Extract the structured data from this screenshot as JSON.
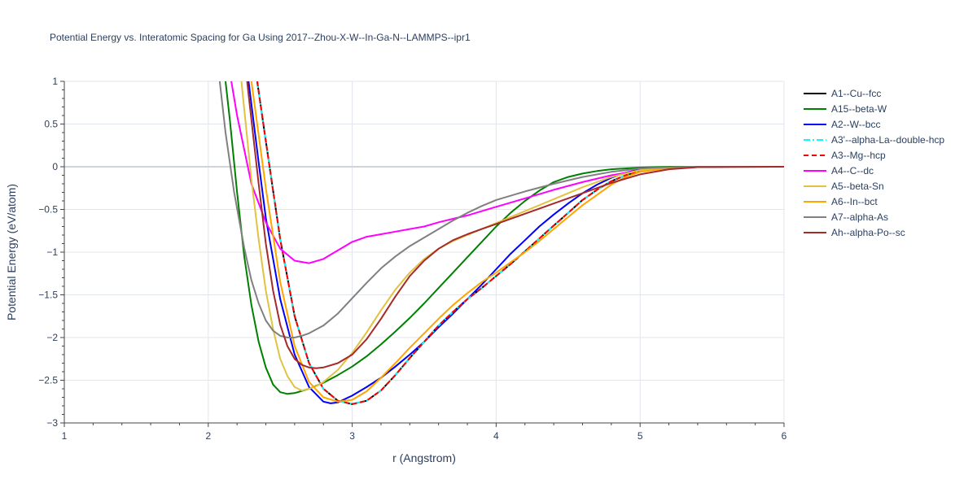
{
  "chart_data": {
    "type": "line",
    "title": "Potential Energy vs. Interatomic Spacing for Ga Using 2017--Zhou-X-W--In-Ga-N--LAMMPS--ipr1",
    "xlabel": "r (Angstrom)",
    "ylabel": "Potential Energy (eV/atom)",
    "xlim": [
      1,
      6
    ],
    "ylim": [
      -3,
      1
    ],
    "xticks": [
      1,
      2,
      3,
      4,
      5,
      6
    ],
    "yticks": [
      1,
      0.5,
      0,
      -0.5,
      -1,
      -1.5,
      -2,
      -2.5,
      -3
    ],
    "ytick_labels": [
      "1",
      "0.5",
      "0",
      "−0.5",
      "−1",
      "−1.5",
      "−2",
      "−2.5",
      "−3"
    ],
    "grid": true,
    "legend_position": "right",
    "series": [
      {
        "name": "A1--Cu--fcc",
        "color": "#000000",
        "dash": "solid",
        "x": [
          2.34,
          2.4,
          2.5,
          2.6,
          2.7,
          2.8,
          2.9,
          3.0,
          3.1,
          3.2,
          3.3,
          3.4,
          3.5,
          3.6,
          3.7,
          3.8,
          3.9,
          4.0,
          4.1,
          4.2,
          4.3,
          4.4,
          4.5,
          4.6,
          4.7,
          4.8,
          4.9,
          5.0,
          5.2,
          5.4,
          5.6,
          6.0
        ],
        "y": [
          1.0,
          0.3,
          -0.85,
          -1.75,
          -2.3,
          -2.6,
          -2.74,
          -2.78,
          -2.74,
          -2.62,
          -2.44,
          -2.24,
          -2.05,
          -1.86,
          -1.7,
          -1.55,
          -1.42,
          -1.28,
          -1.14,
          -0.99,
          -0.84,
          -0.69,
          -0.54,
          -0.39,
          -0.27,
          -0.17,
          -0.1,
          -0.05,
          -0.015,
          -0.003,
          0.0,
          0.0
        ]
      },
      {
        "name": "A15--beta-W",
        "color": "#008000",
        "dash": "solid",
        "x": [
          2.12,
          2.15,
          2.2,
          2.25,
          2.3,
          2.35,
          2.4,
          2.45,
          2.5,
          2.55,
          2.6,
          2.7,
          2.8,
          2.9,
          3.0,
          3.1,
          3.2,
          3.3,
          3.4,
          3.5,
          3.6,
          3.7,
          3.8,
          3.9,
          4.0,
          4.1,
          4.2,
          4.3,
          4.4,
          4.5,
          4.6,
          4.7,
          4.8,
          4.9,
          5.0,
          5.2,
          5.4,
          6.0
        ],
        "y": [
          1.0,
          0.55,
          -0.3,
          -1.05,
          -1.62,
          -2.05,
          -2.35,
          -2.55,
          -2.64,
          -2.66,
          -2.65,
          -2.6,
          -2.53,
          -2.44,
          -2.34,
          -2.22,
          -2.08,
          -1.93,
          -1.77,
          -1.6,
          -1.42,
          -1.24,
          -1.06,
          -0.88,
          -0.7,
          -0.54,
          -0.4,
          -0.28,
          -0.18,
          -0.12,
          -0.08,
          -0.05,
          -0.03,
          -0.02,
          -0.01,
          0.0,
          0.0,
          0.0
        ]
      },
      {
        "name": "A2--W--bcc",
        "color": "#0000ff",
        "dash": "solid",
        "x": [
          2.28,
          2.35,
          2.4,
          2.5,
          2.6,
          2.7,
          2.8,
          2.85,
          2.9,
          3.0,
          3.1,
          3.2,
          3.3,
          3.4,
          3.5,
          3.6,
          3.7,
          3.8,
          3.9,
          4.0,
          4.1,
          4.2,
          4.3,
          4.4,
          4.5,
          4.6,
          4.7,
          4.8,
          4.9,
          5.0,
          5.2,
          5.4,
          6.0
        ],
        "y": [
          1.0,
          0.05,
          -0.6,
          -1.55,
          -2.2,
          -2.58,
          -2.75,
          -2.77,
          -2.76,
          -2.68,
          -2.58,
          -2.47,
          -2.34,
          -2.2,
          -2.05,
          -1.88,
          -1.72,
          -1.55,
          -1.38,
          -1.2,
          -1.02,
          -0.86,
          -0.7,
          -0.56,
          -0.43,
          -0.31,
          -0.21,
          -0.13,
          -0.07,
          -0.03,
          -0.01,
          0.0,
          0.0
        ]
      },
      {
        "name": "A3'--alpha-La--double-hcp",
        "color": "#00ffff",
        "dash": "dashdot",
        "x": [
          2.34,
          2.4,
          2.5,
          2.6,
          2.7,
          2.8,
          2.9,
          3.0,
          3.1,
          3.2,
          3.3,
          3.4,
          3.5,
          3.6,
          3.7,
          3.8,
          3.9,
          4.0,
          4.1,
          4.2,
          4.3,
          4.4,
          4.5,
          4.6,
          4.7,
          4.8,
          4.9,
          5.0,
          5.2,
          5.4,
          5.6,
          6.0
        ],
        "y": [
          1.0,
          0.3,
          -0.85,
          -1.75,
          -2.3,
          -2.6,
          -2.74,
          -2.78,
          -2.74,
          -2.62,
          -2.44,
          -2.24,
          -2.05,
          -1.86,
          -1.7,
          -1.55,
          -1.42,
          -1.28,
          -1.14,
          -0.99,
          -0.84,
          -0.69,
          -0.54,
          -0.39,
          -0.27,
          -0.17,
          -0.1,
          -0.05,
          -0.015,
          -0.003,
          0.0,
          0.0
        ]
      },
      {
        "name": "A3--Mg--hcp",
        "color": "#ff0000",
        "dash": "dash",
        "x": [
          2.34,
          2.4,
          2.5,
          2.6,
          2.7,
          2.8,
          2.9,
          3.0,
          3.1,
          3.2,
          3.3,
          3.4,
          3.5,
          3.6,
          3.7,
          3.8,
          3.9,
          4.0,
          4.1,
          4.2,
          4.3,
          4.4,
          4.5,
          4.6,
          4.7,
          4.8,
          4.9,
          5.0,
          5.2,
          5.4,
          5.6,
          6.0
        ],
        "y": [
          1.0,
          0.3,
          -0.85,
          -1.75,
          -2.3,
          -2.6,
          -2.74,
          -2.78,
          -2.74,
          -2.62,
          -2.44,
          -2.24,
          -2.05,
          -1.86,
          -1.7,
          -1.55,
          -1.42,
          -1.28,
          -1.14,
          -0.99,
          -0.84,
          -0.69,
          -0.54,
          -0.39,
          -0.27,
          -0.17,
          -0.1,
          -0.05,
          -0.015,
          -0.003,
          0.0,
          0.0
        ]
      },
      {
        "name": "A4--C--dc",
        "color": "#ff00ff",
        "dash": "solid",
        "x": [
          2.16,
          2.2,
          2.3,
          2.4,
          2.5,
          2.6,
          2.7,
          2.8,
          2.9,
          3.0,
          3.1,
          3.2,
          3.3,
          3.4,
          3.5,
          3.6,
          3.7,
          3.8,
          3.9,
          4.0,
          4.2,
          4.4,
          4.6,
          4.8,
          5.0,
          5.2,
          5.4,
          6.0
        ],
        "y": [
          1.0,
          0.6,
          -0.2,
          -0.65,
          -0.96,
          -1.1,
          -1.13,
          -1.08,
          -0.98,
          -0.88,
          -0.82,
          -0.79,
          -0.76,
          -0.73,
          -0.7,
          -0.65,
          -0.61,
          -0.57,
          -0.52,
          -0.47,
          -0.37,
          -0.27,
          -0.18,
          -0.1,
          -0.04,
          -0.01,
          0.0,
          0.0
        ]
      },
      {
        "name": "A5--beta-Sn",
        "color": "#e1c340",
        "dash": "solid",
        "x": [
          2.23,
          2.3,
          2.35,
          2.4,
          2.45,
          2.5,
          2.55,
          2.6,
          2.65,
          2.7,
          2.75,
          2.8,
          2.9,
          3.0,
          3.1,
          3.2,
          3.3,
          3.4,
          3.5,
          3.6,
          3.7,
          3.8,
          3.9,
          4.0,
          4.2,
          4.4,
          4.6,
          4.8,
          5.0,
          5.2,
          5.4,
          6.0
        ],
        "y": [
          1.0,
          -0.15,
          -0.85,
          -1.45,
          -1.9,
          -2.25,
          -2.45,
          -2.58,
          -2.62,
          -2.6,
          -2.57,
          -2.52,
          -2.38,
          -2.18,
          -1.94,
          -1.68,
          -1.44,
          -1.24,
          -1.08,
          -0.96,
          -0.87,
          -0.8,
          -0.73,
          -0.66,
          -0.52,
          -0.38,
          -0.24,
          -0.12,
          -0.04,
          -0.01,
          0.0,
          0.0
        ]
      },
      {
        "name": "A6--In--bct",
        "color": "#ffa500",
        "dash": "solid",
        "x": [
          2.3,
          2.4,
          2.5,
          2.6,
          2.7,
          2.8,
          2.9,
          3.0,
          3.1,
          3.2,
          3.3,
          3.4,
          3.5,
          3.6,
          3.7,
          3.8,
          3.9,
          4.0,
          4.1,
          4.2,
          4.3,
          4.4,
          4.5,
          4.6,
          4.7,
          4.8,
          4.9,
          5.0,
          5.2,
          5.4,
          6.0
        ],
        "y": [
          1.0,
          -0.25,
          -1.35,
          -2.1,
          -2.52,
          -2.7,
          -2.75,
          -2.73,
          -2.63,
          -2.47,
          -2.3,
          -2.12,
          -1.95,
          -1.78,
          -1.62,
          -1.48,
          -1.35,
          -1.24,
          -1.12,
          -1.0,
          -0.87,
          -0.73,
          -0.59,
          -0.45,
          -0.33,
          -0.21,
          -0.12,
          -0.06,
          -0.015,
          0.0,
          0.0
        ]
      },
      {
        "name": "A7--alpha-As",
        "color": "#808080",
        "dash": "solid",
        "x": [
          2.08,
          2.12,
          2.18,
          2.25,
          2.3,
          2.35,
          2.4,
          2.45,
          2.5,
          2.55,
          2.6,
          2.65,
          2.7,
          2.8,
          2.9,
          3.0,
          3.1,
          3.2,
          3.3,
          3.4,
          3.5,
          3.6,
          3.7,
          3.8,
          3.9,
          4.0,
          4.2,
          4.4,
          4.6,
          4.8,
          5.0,
          5.2,
          5.4,
          6.0
        ],
        "y": [
          1.0,
          0.4,
          -0.3,
          -0.95,
          -1.33,
          -1.6,
          -1.8,
          -1.92,
          -1.98,
          -2.0,
          -2.0,
          -1.98,
          -1.95,
          -1.86,
          -1.72,
          -1.54,
          -1.36,
          -1.19,
          -1.05,
          -0.93,
          -0.83,
          -0.73,
          -0.63,
          -0.54,
          -0.46,
          -0.39,
          -0.29,
          -0.2,
          -0.12,
          -0.06,
          -0.02,
          -0.005,
          0.0,
          0.0
        ]
      },
      {
        "name": "Ah--alpha-Po--sc",
        "color": "#a52a2a",
        "dash": "solid",
        "x": [
          2.27,
          2.3,
          2.35,
          2.4,
          2.45,
          2.5,
          2.55,
          2.6,
          2.65,
          2.7,
          2.75,
          2.8,
          2.9,
          3.0,
          3.1,
          3.2,
          3.3,
          3.4,
          3.5,
          3.6,
          3.7,
          3.8,
          3.9,
          4.0,
          4.2,
          4.4,
          4.6,
          4.8,
          5.0,
          5.2,
          5.4,
          6.0
        ],
        "y": [
          1.0,
          0.55,
          -0.2,
          -0.9,
          -1.45,
          -1.85,
          -2.1,
          -2.25,
          -2.32,
          -2.35,
          -2.36,
          -2.35,
          -2.3,
          -2.2,
          -2.02,
          -1.78,
          -1.52,
          -1.28,
          -1.1,
          -0.96,
          -0.86,
          -0.79,
          -0.73,
          -0.67,
          -0.55,
          -0.43,
          -0.31,
          -0.19,
          -0.09,
          -0.03,
          -0.005,
          0.0
        ]
      }
    ]
  }
}
